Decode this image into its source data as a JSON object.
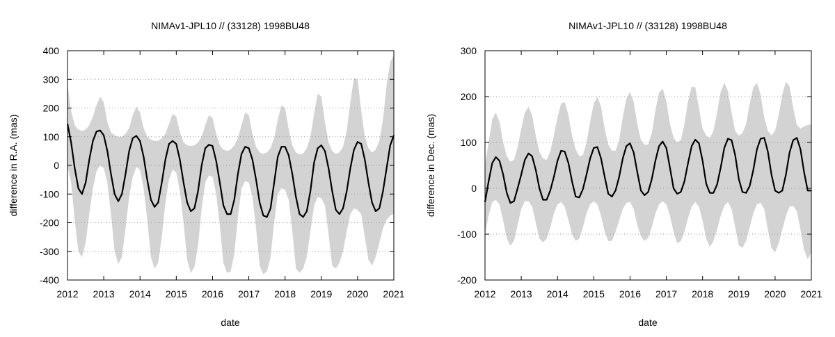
{
  "chart_data": [
    {
      "type": "line",
      "title": "NIMAv1-JPL10 // (33128) 1998BU48",
      "xlabel": "date",
      "ylabel": "difference in R.A. (mas)",
      "xlim": [
        2012,
        2021
      ],
      "ylim": [
        -400,
        400
      ],
      "xticks": [
        2012,
        2013,
        2014,
        2015,
        2016,
        2017,
        2018,
        2019,
        2020,
        2021
      ],
      "yticks": [
        -400,
        -300,
        -200,
        -100,
        0,
        100,
        200,
        300,
        400
      ],
      "grid": "horizontal dotted",
      "series": [
        {
          "style": "mean line",
          "color": "#000000",
          "x": [
            2012.0,
            2012.1,
            2012.2,
            2012.3,
            2012.4,
            2012.5,
            2012.6,
            2012.7,
            2012.8,
            2012.9,
            2013.0,
            2013.1,
            2013.2,
            2013.3,
            2013.4,
            2013.5,
            2013.6,
            2013.7,
            2013.8,
            2013.9,
            2014.0,
            2014.1,
            2014.2,
            2014.3,
            2014.4,
            2014.5,
            2014.6,
            2014.7,
            2014.8,
            2014.9,
            2015.0,
            2015.1,
            2015.2,
            2015.3,
            2015.4,
            2015.5,
            2015.6,
            2015.7,
            2015.8,
            2015.9,
            2016.0,
            2016.1,
            2016.2,
            2016.3,
            2016.4,
            2016.5,
            2016.6,
            2016.7,
            2016.8,
            2016.9,
            2017.0,
            2017.1,
            2017.2,
            2017.3,
            2017.4,
            2017.5,
            2017.6,
            2017.7,
            2017.8,
            2017.9,
            2018.0,
            2018.1,
            2018.2,
            2018.3,
            2018.4,
            2018.5,
            2018.6,
            2018.7,
            2018.8,
            2018.9,
            2019.0,
            2019.1,
            2019.2,
            2019.3,
            2019.4,
            2019.5,
            2019.6,
            2019.7,
            2019.8,
            2019.9,
            2020.0,
            2020.1,
            2020.2,
            2020.3,
            2020.4,
            2020.5,
            2020.6,
            2020.7,
            2020.8,
            2020.9,
            2021.0
          ],
          "y": [
            145,
            80,
            -10,
            -80,
            -100,
            -60,
            20,
            85,
            118,
            122,
            105,
            50,
            -30,
            -100,
            -125,
            -100,
            -30,
            50,
            95,
            103,
            85,
            30,
            -50,
            -120,
            -145,
            -130,
            -60,
            20,
            75,
            85,
            75,
            20,
            -60,
            -130,
            -160,
            -150,
            -90,
            0,
            60,
            72,
            68,
            15,
            -60,
            -140,
            -170,
            -170,
            -120,
            -30,
            40,
            65,
            60,
            20,
            -50,
            -130,
            -175,
            -180,
            -150,
            -60,
            30,
            65,
            65,
            35,
            -30,
            -110,
            -170,
            -180,
            -160,
            -90,
            10,
            60,
            70,
            50,
            -10,
            -90,
            -155,
            -170,
            -150,
            -90,
            -10,
            55,
            82,
            75,
            20,
            -60,
            -130,
            -160,
            -150,
            -90,
            -10,
            70,
            105
          ]
        },
        {
          "style": "uncertainty band",
          "color": "#d3d3d3",
          "x": [
            2012.0,
            2012.1,
            2012.2,
            2012.3,
            2012.4,
            2012.5,
            2012.6,
            2012.7,
            2012.8,
            2012.9,
            2013.0,
            2013.1,
            2013.2,
            2013.3,
            2013.4,
            2013.5,
            2013.6,
            2013.7,
            2013.8,
            2013.9,
            2014.0,
            2014.1,
            2014.2,
            2014.3,
            2014.4,
            2014.5,
            2014.6,
            2014.7,
            2014.8,
            2014.9,
            2015.0,
            2015.1,
            2015.2,
            2015.3,
            2015.4,
            2015.5,
            2015.6,
            2015.7,
            2015.8,
            2015.9,
            2016.0,
            2016.1,
            2016.2,
            2016.3,
            2016.4,
            2016.5,
            2016.6,
            2016.7,
            2016.8,
            2016.9,
            2017.0,
            2017.1,
            2017.2,
            2017.3,
            2017.4,
            2017.5,
            2017.6,
            2017.7,
            2017.8,
            2017.9,
            2018.0,
            2018.1,
            2018.2,
            2018.3,
            2018.4,
            2018.5,
            2018.6,
            2018.7,
            2018.8,
            2018.9,
            2019.0,
            2019.1,
            2019.2,
            2019.3,
            2019.4,
            2019.5,
            2019.6,
            2019.7,
            2019.8,
            2019.9,
            2020.0,
            2020.1,
            2020.2,
            2020.3,
            2020.4,
            2020.5,
            2020.6,
            2020.7,
            2020.8,
            2020.9,
            2021.0
          ],
          "upper": [
            285,
            190,
            140,
            125,
            120,
            125,
            140,
            170,
            210,
            240,
            220,
            150,
            115,
            105,
            100,
            100,
            110,
            130,
            175,
            205,
            185,
            130,
            100,
            90,
            85,
            85,
            95,
            110,
            145,
            180,
            170,
            115,
            80,
            70,
            68,
            70,
            80,
            100,
            140,
            175,
            165,
            110,
            70,
            55,
            50,
            55,
            70,
            95,
            140,
            185,
            175,
            110,
            65,
            45,
            40,
            45,
            60,
            95,
            160,
            210,
            200,
            125,
            70,
            45,
            38,
            42,
            60,
            100,
            180,
            250,
            240,
            150,
            80,
            50,
            40,
            45,
            65,
            120,
            220,
            305,
            300,
            190,
            100,
            60,
            45,
            55,
            85,
            160,
            280,
            360,
            385
          ],
          "lower": [
            0,
            -60,
            -190,
            -300,
            -320,
            -270,
            -170,
            -80,
            -20,
            0,
            -10,
            -60,
            -170,
            -300,
            -345,
            -320,
            -220,
            -110,
            -40,
            -5,
            -15,
            -80,
            -190,
            -320,
            -360,
            -340,
            -250,
            -130,
            -50,
            -15,
            -25,
            -90,
            -200,
            -330,
            -375,
            -355,
            -280,
            -150,
            -60,
            -35,
            -40,
            -100,
            -210,
            -340,
            -375,
            -370,
            -310,
            -180,
            -80,
            -55,
            -60,
            -110,
            -220,
            -350,
            -380,
            -370,
            -320,
            -200,
            -100,
            -80,
            -85,
            -120,
            -230,
            -360,
            -375,
            -360,
            -320,
            -230,
            -140,
            -110,
            -115,
            -140,
            -240,
            -350,
            -360,
            -340,
            -300,
            -230,
            -170,
            -150,
            -155,
            -170,
            -250,
            -330,
            -350,
            -320,
            -270,
            -220,
            -190,
            -175,
            -170
          ]
        }
      ]
    },
    {
      "type": "line",
      "title": "NIMAv1-JPL10 // (33128) 1998BU48",
      "xlabel": "date",
      "ylabel": "difference in Dec. (mas)",
      "xlim": [
        2012,
        2021
      ],
      "ylim": [
        -200,
        300
      ],
      "xticks": [
        2012,
        2013,
        2014,
        2015,
        2016,
        2017,
        2018,
        2019,
        2020,
        2021
      ],
      "yticks": [
        -200,
        -100,
        0,
        100,
        200,
        300
      ],
      "grid": "horizontal dotted",
      "series": [
        {
          "style": "mean line",
          "color": "#000000",
          "x": [
            2012.0,
            2012.1,
            2012.2,
            2012.3,
            2012.4,
            2012.5,
            2012.6,
            2012.7,
            2012.8,
            2012.9,
            2013.0,
            2013.1,
            2013.2,
            2013.3,
            2013.4,
            2013.5,
            2013.6,
            2013.7,
            2013.8,
            2013.9,
            2014.0,
            2014.1,
            2014.2,
            2014.3,
            2014.4,
            2014.5,
            2014.6,
            2014.7,
            2014.8,
            2014.9,
            2015.0,
            2015.1,
            2015.2,
            2015.3,
            2015.4,
            2015.5,
            2015.6,
            2015.7,
            2015.8,
            2015.9,
            2016.0,
            2016.1,
            2016.2,
            2016.3,
            2016.4,
            2016.5,
            2016.6,
            2016.7,
            2016.8,
            2016.9,
            2017.0,
            2017.1,
            2017.2,
            2017.3,
            2017.4,
            2017.5,
            2017.6,
            2017.7,
            2017.8,
            2017.9,
            2018.0,
            2018.1,
            2018.2,
            2018.3,
            2018.4,
            2018.5,
            2018.6,
            2018.7,
            2018.8,
            2018.9,
            2019.0,
            2019.1,
            2019.2,
            2019.3,
            2019.4,
            2019.5,
            2019.6,
            2019.7,
            2019.8,
            2019.9,
            2020.0,
            2020.1,
            2020.2,
            2020.3,
            2020.4,
            2020.5,
            2020.6,
            2020.7,
            2020.8,
            2020.9,
            2021.0
          ],
          "y": [
            -30,
            15,
            55,
            68,
            60,
            30,
            -10,
            -32,
            -28,
            0,
            30,
            62,
            76,
            70,
            40,
            0,
            -25,
            -25,
            -5,
            25,
            60,
            82,
            80,
            55,
            15,
            -18,
            -20,
            -2,
            30,
            65,
            88,
            90,
            65,
            25,
            -12,
            -18,
            -5,
            25,
            65,
            92,
            98,
            78,
            35,
            -5,
            -15,
            -8,
            20,
            60,
            92,
            102,
            88,
            45,
            0,
            -12,
            -8,
            15,
            55,
            92,
            106,
            98,
            60,
            10,
            -10,
            -10,
            8,
            45,
            88,
            108,
            105,
            72,
            20,
            -8,
            -10,
            5,
            40,
            85,
            108,
            110,
            80,
            30,
            -5,
            -10,
            -5,
            30,
            78,
            105,
            110,
            85,
            35,
            -5,
            -5
          ]
        },
        {
          "style": "uncertainty band",
          "color": "#d3d3d3",
          "x": [
            2012.0,
            2012.1,
            2012.2,
            2012.3,
            2012.4,
            2012.5,
            2012.6,
            2012.7,
            2012.8,
            2012.9,
            2013.0,
            2013.1,
            2013.2,
            2013.3,
            2013.4,
            2013.5,
            2013.6,
            2013.7,
            2013.8,
            2013.9,
            2014.0,
            2014.1,
            2014.2,
            2014.3,
            2014.4,
            2014.5,
            2014.6,
            2014.7,
            2014.8,
            2014.9,
            2015.0,
            2015.1,
            2015.2,
            2015.3,
            2015.4,
            2015.5,
            2015.6,
            2015.7,
            2015.8,
            2015.9,
            2016.0,
            2016.1,
            2016.2,
            2016.3,
            2016.4,
            2016.5,
            2016.6,
            2016.7,
            2016.8,
            2016.9,
            2017.0,
            2017.1,
            2017.2,
            2017.3,
            2017.4,
            2017.5,
            2017.6,
            2017.7,
            2017.8,
            2017.9,
            2018.0,
            2018.1,
            2018.2,
            2018.3,
            2018.4,
            2018.5,
            2018.6,
            2018.7,
            2018.8,
            2018.9,
            2019.0,
            2019.1,
            2019.2,
            2019.3,
            2019.4,
            2019.5,
            2019.6,
            2019.7,
            2019.8,
            2019.9,
            2020.0,
            2020.1,
            2020.2,
            2020.3,
            2020.4,
            2020.5,
            2020.6,
            2020.7,
            2020.8,
            2020.9,
            2021.0
          ],
          "upper": [
            50,
            100,
            150,
            165,
            145,
            100,
            70,
            58,
            62,
            90,
            130,
            165,
            178,
            160,
            115,
            80,
            65,
            62,
            80,
            115,
            155,
            185,
            188,
            160,
            115,
            85,
            70,
            72,
            100,
            145,
            185,
            200,
            178,
            130,
            95,
            82,
            82,
            105,
            155,
            195,
            210,
            188,
            140,
            105,
            95,
            95,
            120,
            170,
            208,
            218,
            190,
            140,
            110,
            100,
            105,
            140,
            190,
            222,
            220,
            175,
            130,
            115,
            110,
            125,
            165,
            210,
            230,
            212,
            165,
            125,
            115,
            120,
            140,
            185,
            220,
            230,
            205,
            155,
            125,
            115,
            125,
            160,
            205,
            233,
            222,
            175,
            138,
            130,
            135,
            138,
            140
          ],
          "lower": [
            -100,
            -60,
            -30,
            -25,
            -35,
            -70,
            -110,
            -125,
            -115,
            -80,
            -45,
            -28,
            -28,
            -40,
            -75,
            -110,
            -118,
            -110,
            -85,
            -55,
            -35,
            -30,
            -40,
            -70,
            -100,
            -115,
            -110,
            -85,
            -55,
            -35,
            -28,
            -35,
            -60,
            -95,
            -115,
            -115,
            -95,
            -70,
            -45,
            -32,
            -30,
            -45,
            -80,
            -105,
            -115,
            -108,
            -85,
            -55,
            -35,
            -28,
            -35,
            -60,
            -95,
            -120,
            -115,
            -95,
            -65,
            -40,
            -30,
            -40,
            -70,
            -110,
            -128,
            -115,
            -90,
            -60,
            -38,
            -30,
            -45,
            -85,
            -125,
            -130,
            -115,
            -85,
            -55,
            -35,
            -32,
            -45,
            -90,
            -130,
            -140,
            -120,
            -90,
            -60,
            -40,
            -38,
            -50,
            -90,
            -135,
            -155,
            -140
          ]
        }
      ]
    }
  ]
}
